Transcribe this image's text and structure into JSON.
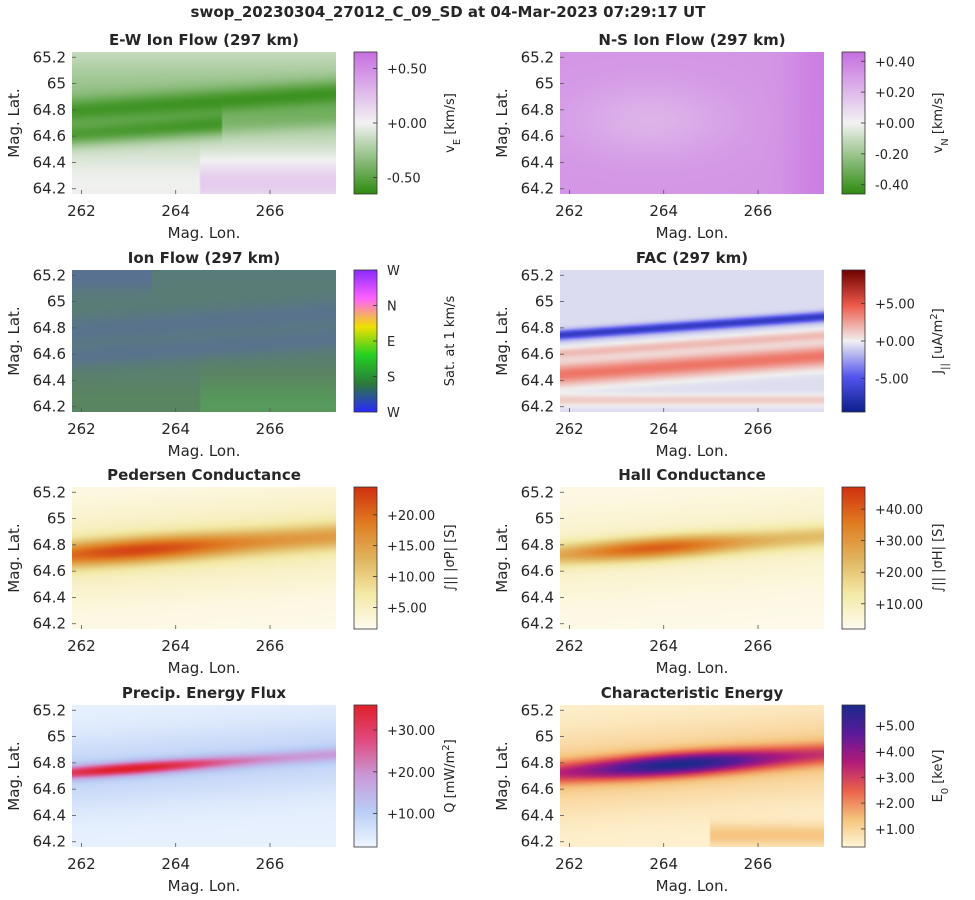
{
  "figure_title": "swop_20230304_27012_C_09_SD at 04-Mar-2023 07:29:17 UT",
  "chart_data": [
    {
      "type": "heatmap",
      "id": "ew",
      "title": "E-W Ion Flow (297 km)",
      "xlabel": "Mag. Lon.",
      "ylabel": "Mag. Lat.",
      "xlim": [
        261.8,
        267.4
      ],
      "ylim": [
        64.16,
        65.24
      ],
      "xticks": [
        "262",
        "264",
        "266"
      ],
      "yticks": [
        "64.2",
        "64.4",
        "64.6",
        "64.8",
        "65",
        "65.2"
      ],
      "colorbar": {
        "label": "v_E [km/s]",
        "ticks": [
          "+0.50",
          "+0.00",
          "-0.50"
        ],
        "range": [
          -0.65,
          0.65
        ],
        "colors": [
          "#2e8b10",
          "#f2f2f2",
          "#c66ee0"
        ]
      },
      "field": {
        "kind": "ew"
      }
    },
    {
      "type": "heatmap",
      "id": "ns",
      "title": "N-S Ion Flow (297 km)",
      "xlabel": "Mag. Lon.",
      "ylabel": "Mag. Lat.",
      "xlim": [
        261.8,
        267.4
      ],
      "ylim": [
        64.16,
        65.24
      ],
      "xticks": [
        "262",
        "264",
        "266"
      ],
      "yticks": [
        "64.2",
        "64.4",
        "64.6",
        "64.8",
        "65",
        "65.2"
      ],
      "colorbar": {
        "label": "v_N [km/s]",
        "ticks": [
          "+0.40",
          "+0.20",
          "+0.00",
          "-0.20",
          "-0.40"
        ],
        "range": [
          -0.46,
          0.46
        ],
        "colors": [
          "#2e8b10",
          "#f2f2f2",
          "#c66ee0"
        ]
      },
      "field": {
        "kind": "ns"
      }
    },
    {
      "type": "heatmap",
      "id": "ion",
      "title": "Ion Flow (297 km)",
      "xlabel": "Mag. Lon.",
      "ylabel": "Mag. Lat.",
      "xlim": [
        261.8,
        267.4
      ],
      "ylim": [
        64.16,
        65.24
      ],
      "xticks": [
        "262",
        "264",
        "266"
      ],
      "yticks": [
        "64.2",
        "64.4",
        "64.6",
        "64.8",
        "65",
        "65.2"
      ],
      "colorbar": {
        "label": "Sat. at 1 km/s",
        "ticks": [
          "W",
          "N",
          "E",
          "S",
          "W"
        ],
        "range": [
          0,
          1
        ],
        "colors": [
          "#2a2aff",
          "#2b7a3a",
          "#22d022",
          "#f0e000",
          "#ff60ff",
          "#8a2aff"
        ]
      },
      "field": {
        "kind": "ion"
      }
    },
    {
      "type": "heatmap",
      "id": "fac",
      "title": "FAC (297 km)",
      "xlabel": "Mag. Lon.",
      "ylabel": "Mag. Lat.",
      "xlim": [
        261.8,
        267.4
      ],
      "ylim": [
        64.16,
        65.24
      ],
      "xticks": [
        "262",
        "264",
        "266"
      ],
      "yticks": [
        "64.2",
        "64.4",
        "64.6",
        "64.8",
        "65",
        "65.2"
      ],
      "colorbar": {
        "label": "J_|| [uA/m^2]",
        "ticks": [
          "+5.00",
          "+0.00",
          "-5.00"
        ],
        "range": [
          -9.5,
          9.5
        ],
        "colors": [
          "#0a1f8c",
          "#5555ee",
          "#f0f0f0",
          "#ee5a4a",
          "#6e0000"
        ]
      },
      "field": {
        "kind": "fac"
      }
    },
    {
      "type": "heatmap",
      "id": "ped",
      "title": "Pedersen Conductance",
      "xlabel": "Mag. Lon.",
      "ylabel": "Mag. Lat.",
      "xlim": [
        261.8,
        267.4
      ],
      "ylim": [
        64.16,
        65.24
      ],
      "xticks": [
        "262",
        "264",
        "266"
      ],
      "yticks": [
        "64.2",
        "64.4",
        "64.6",
        "64.8",
        "65",
        "65.2"
      ],
      "colorbar": {
        "label": "∫|| |σP| [S]",
        "ticks": [
          "+20.00",
          "+15.00",
          "+10.00",
          "+5.00"
        ],
        "range": [
          1.5,
          24.5
        ],
        "colors": [
          "#fffbf0",
          "#f3e9a6",
          "#e0b35c",
          "#e07a20",
          "#d03010"
        ]
      },
      "field": {
        "kind": "ped"
      }
    },
    {
      "type": "heatmap",
      "id": "hall",
      "title": "Hall Conductance",
      "xlabel": "Mag. Lon.",
      "ylabel": "Mag. Lat.",
      "xlim": [
        261.8,
        267.4
      ],
      "ylim": [
        64.16,
        65.24
      ],
      "xticks": [
        "262",
        "264",
        "266"
      ],
      "yticks": [
        "64.2",
        "64.4",
        "64.6",
        "64.8",
        "65",
        "65.2"
      ],
      "colorbar": {
        "label": "∫|| |σH| [S]",
        "ticks": [
          "+40.00",
          "+30.00",
          "+20.00",
          "+10.00"
        ],
        "range": [
          2,
          47
        ],
        "colors": [
          "#fffbf0",
          "#f3e9a6",
          "#e0b35c",
          "#e07a20",
          "#d03010"
        ]
      },
      "field": {
        "kind": "hall"
      }
    },
    {
      "type": "heatmap",
      "id": "q",
      "title": "Precip. Energy Flux",
      "xlabel": "Mag. Lon.",
      "ylabel": "Mag. Lat.",
      "xlim": [
        261.8,
        267.4
      ],
      "ylim": [
        64.16,
        65.24
      ],
      "xticks": [
        "262",
        "264",
        "266"
      ],
      "yticks": [
        "64.2",
        "64.4",
        "64.6",
        "64.8",
        "65",
        "65.2"
      ],
      "colorbar": {
        "label": "Q [mW/m^2]",
        "ticks": [
          "+30.00",
          "+20.00",
          "+10.00"
        ],
        "range": [
          2,
          36
        ],
        "colors": [
          "#eef6ff",
          "#b9cdf5",
          "#c99ad8",
          "#e04a80",
          "#e0202a"
        ]
      },
      "field": {
        "kind": "q"
      }
    },
    {
      "type": "heatmap",
      "id": "e0",
      "title": "Characteristic Energy",
      "xlabel": "Mag. Lon.",
      "ylabel": "Mag. Lat.",
      "xlim": [
        261.8,
        267.4
      ],
      "ylim": [
        64.16,
        65.24
      ],
      "xticks": [
        "262",
        "264",
        "266"
      ],
      "yticks": [
        "64.2",
        "64.4",
        "64.6",
        "64.8",
        "65",
        "65.2"
      ],
      "colorbar": {
        "label": "E_0 [keV]",
        "ticks": [
          "+5.00",
          "+4.00",
          "+3.00",
          "+2.00",
          "+1.00"
        ],
        "range": [
          0.3,
          5.8
        ],
        "colors": [
          "#fff6d8",
          "#f5c27a",
          "#e9604a",
          "#b01a7a",
          "#5a1a9a",
          "#1a2a8a"
        ]
      },
      "field": {
        "kind": "e0"
      }
    }
  ]
}
